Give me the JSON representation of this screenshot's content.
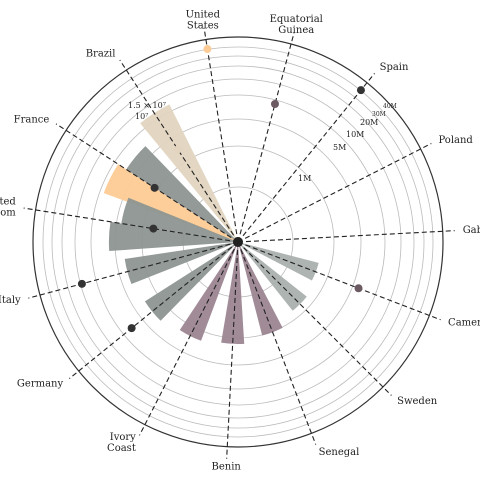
{
  "chart_data": {
    "type": "polar-bar",
    "title": "",
    "radial_scale": "log",
    "grid": true,
    "ring_labels": [
      "1M",
      "5M",
      "10M",
      "20M",
      "30M",
      "40M",
      "1.5 × 10⁷",
      "10⁷"
    ],
    "categories": [
      {
        "name": "United States",
        "label_lines": [
          "United",
          "States"
        ]
      },
      {
        "name": "Equatorial Guinea",
        "label_lines": [
          "Equatorial",
          "Guinea"
        ]
      },
      {
        "name": "Spain",
        "label_lines": [
          "Spain"
        ]
      },
      {
        "name": "Poland",
        "label_lines": [
          "Poland"
        ]
      },
      {
        "name": "Gabon",
        "label_lines": [
          "Gabon"
        ]
      },
      {
        "name": "Cameroon",
        "label_lines": [
          "Cameroon"
        ]
      },
      {
        "name": "Sweden",
        "label_lines": [
          "Sweden"
        ]
      },
      {
        "name": "Senegal",
        "label_lines": [
          "Senegal"
        ]
      },
      {
        "name": "Benin",
        "label_lines": [
          "Benin"
        ]
      },
      {
        "name": "Ivory Coast",
        "label_lines": [
          "Ivory",
          "Coast"
        ]
      },
      {
        "name": "Germany",
        "label_lines": [
          "Germany"
        ]
      },
      {
        "name": "Italy",
        "label_lines": [
          "Italy"
        ]
      },
      {
        "name": "United Kingdom",
        "label_lines": [
          "United",
          "Kingdom"
        ]
      },
      {
        "name": "France",
        "label_lines": [
          "France"
        ]
      },
      {
        "name": "Brazil",
        "label_lines": [
          "Brazil"
        ]
      }
    ],
    "bars": [
      {
        "category": "Brazil",
        "value": 15000000,
        "color": "#e2d4bf"
      },
      {
        "category": "France",
        "value": 10000000,
        "color": "#fdcb95"
      },
      {
        "category": "France",
        "value": 7000000,
        "color": "#8d9591"
      },
      {
        "category": "United Kingdom",
        "value": 6000000,
        "color": "#8d9591"
      },
      {
        "category": "United Kingdom",
        "value": 4000000,
        "color": "#8d9591"
      },
      {
        "category": "Italy",
        "value": 3500000,
        "color": "#8d9591"
      },
      {
        "category": "Germany",
        "value": 3000000,
        "color": "#8d9591"
      },
      {
        "category": "Ivory Coast",
        "value": 2500000,
        "color": "#9b8591"
      },
      {
        "category": "Benin",
        "value": 2200000,
        "color": "#9b8591"
      },
      {
        "category": "Senegal",
        "value": 1800000,
        "color": "#9b8591"
      },
      {
        "category": "Sweden",
        "value": 1300000,
        "color": "#aab0ad"
      },
      {
        "category": "Cameroon",
        "value": 1100000,
        "color": "#aab0ad"
      }
    ],
    "markers": [
      {
        "category": "Spain",
        "value": 70000000,
        "color": "#333333"
      },
      {
        "category": "Equatorial Guinea",
        "value": 10000000,
        "color": "#6b5a62"
      },
      {
        "category": "Cameroon",
        "value": 6000000,
        "color": "#6b5a62"
      },
      {
        "category": "Italy",
        "value": 20000000,
        "color": "#333333"
      },
      {
        "category": "Germany",
        "value": 8000000,
        "color": "#333333"
      },
      {
        "category": "United Kingdom",
        "value": 1200000,
        "color": "#333333"
      },
      {
        "category": "France",
        "value": 2000000,
        "color": "#333333"
      },
      {
        "category": "United States",
        "value": 70000000,
        "color": "#fdcb95"
      },
      {
        "category": "Brazil",
        "value": 3000000,
        "color": "#e2d4bf"
      }
    ],
    "colors": {
      "grid": "#bbbbbb",
      "outer_ring": "#333333",
      "spoke": "#222222",
      "hub": "#222222"
    }
  }
}
